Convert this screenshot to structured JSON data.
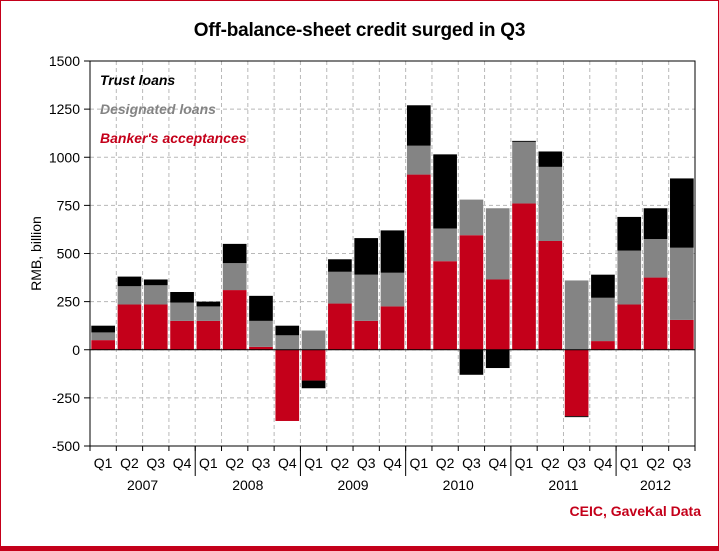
{
  "title": "Off-balance-sheet credit surged in Q3",
  "source": "CEIC, GaveKal Data",
  "colors": {
    "trust": "#000000",
    "designated": "#848484",
    "bankers": "#c4001a",
    "grid": "#b8b8b8",
    "frame": "#c4001a"
  },
  "chart_data": {
    "type": "bar",
    "stacked": true,
    "title": "Off-balance-sheet credit surged in Q3",
    "ylabel": "RMB, billion",
    "xlabel": "",
    "ylim": [
      -500,
      1500
    ],
    "yticks": [
      1500,
      1250,
      1000,
      750,
      500,
      250,
      0,
      -250,
      -500
    ],
    "grid": true,
    "legend_position": "top-left",
    "quarters": [
      "Q1",
      "Q2",
      "Q3",
      "Q4",
      "Q1",
      "Q2",
      "Q3",
      "Q4",
      "Q1",
      "Q2",
      "Q3",
      "Q4",
      "Q1",
      "Q2",
      "Q3",
      "Q4",
      "Q1",
      "Q2",
      "Q3",
      "Q4",
      "Q1",
      "Q2",
      "Q3"
    ],
    "years": [
      {
        "label": "2007",
        "quarters": 4
      },
      {
        "label": "2008",
        "quarters": 4
      },
      {
        "label": "2009",
        "quarters": 4
      },
      {
        "label": "2010",
        "quarters": 4
      },
      {
        "label": "2011",
        "quarters": 4
      },
      {
        "label": "2012",
        "quarters": 3
      }
    ],
    "series": [
      {
        "name": "Banker's acceptances",
        "values": [
          50,
          235,
          235,
          150,
          150,
          310,
          15,
          -370,
          -160,
          240,
          150,
          225,
          910,
          460,
          595,
          365,
          760,
          565,
          -345,
          45,
          235,
          375,
          155
        ]
      },
      {
        "name": "Designated loans",
        "values": [
          40,
          95,
          100,
          95,
          75,
          140,
          135,
          75,
          100,
          165,
          240,
          175,
          150,
          170,
          185,
          370,
          320,
          385,
          360,
          225,
          280,
          200,
          375
        ]
      },
      {
        "name": "Trust loans",
        "values": [
          35,
          50,
          30,
          55,
          25,
          100,
          130,
          50,
          -40,
          65,
          190,
          220,
          210,
          385,
          -130,
          -95,
          5,
          80,
          -5,
          120,
          175,
          160,
          360
        ]
      }
    ]
  }
}
